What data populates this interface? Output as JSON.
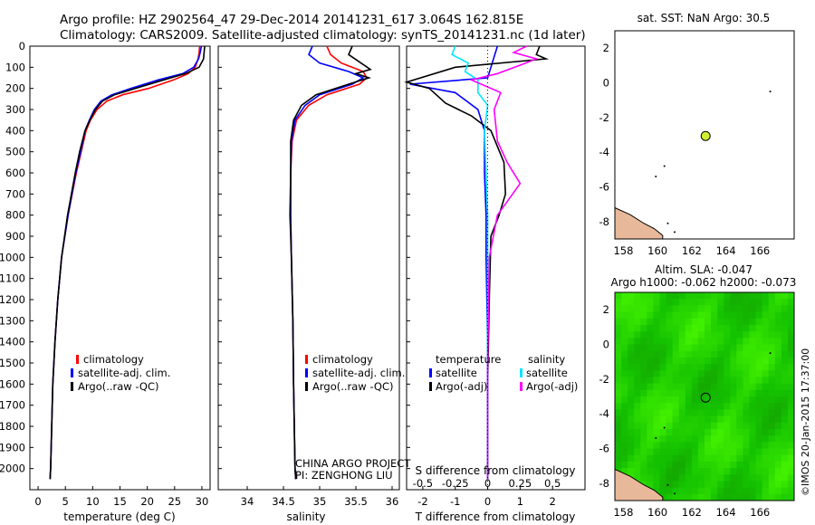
{
  "header": {
    "line1": "Argo profile: HZ 2902564_47 29-Dec-2014 20141231_617 3.064S 162.815E",
    "line2": "Climatology: CARS2009. Satellite-adjusted climatology: synTS_20141231.nc (1d later)"
  },
  "colors": {
    "climatology": "#ff0000",
    "satellite": "#0000ff",
    "argo": "#000000",
    "sat_T": "#00e5ff",
    "argo_S": "#ff00ff",
    "sst_marker": "#ccee33"
  },
  "project": {
    "line1": "CHINA ARGO PROJECT",
    "line2": "PI: ZENGHONG LIU"
  },
  "map_sst": {
    "title": "sat. SST: NaN Argo: 30.5",
    "float_lon": 162.815,
    "float_lat": -3.064
  },
  "map_sla": {
    "title1": "Altim. SLA: -0.047",
    "title2": "Argo h1000: -0.062 h2000: -0.073",
    "float_lon": 162.815,
    "float_lat": -3.064
  },
  "credit": "©IMOS 20-Jan-2015 17:37:00",
  "chart_data": [
    {
      "type": "line",
      "name": "temperature",
      "xlabel": "temperature (deg C)",
      "ylim": [
        2100,
        0
      ],
      "xlim": [
        -1.5,
        31.5
      ],
      "xticks": [
        0,
        5,
        10,
        15,
        20,
        25,
        30
      ],
      "yticks": [
        0,
        100,
        200,
        300,
        400,
        500,
        600,
        700,
        800,
        900,
        1000,
        1100,
        1200,
        1300,
        1400,
        1500,
        1600,
        1700,
        1800,
        1900,
        2000
      ],
      "legend": [
        "climatology",
        "satellite-adj. clim.",
        "Argo(..raw -QC)"
      ],
      "series": [
        {
          "name": "climatology",
          "color": "#ff0000",
          "x": [
            29.6,
            29.5,
            29.3,
            28.8,
            27.5,
            24.8,
            20.2,
            15.5,
            12.6,
            10.8,
            9.6,
            8.8,
            7.9,
            7.0,
            5.5,
            4.3,
            3.6,
            3.1,
            2.7,
            2.5,
            2.3,
            2.2
          ],
          "y": [
            0,
            30,
            60,
            100,
            130,
            160,
            200,
            230,
            260,
            300,
            350,
            400,
            500,
            600,
            800,
            1000,
            1200,
            1400,
            1600,
            1800,
            2000,
            2050
          ]
        },
        {
          "name": "satellite-adj. clim.",
          "color": "#0000ff",
          "x": [
            29.9,
            29.7,
            29.4,
            28.5,
            26.5,
            22.0,
            17.0,
            13.5,
            11.5,
            10.3,
            9.4,
            8.6,
            7.8,
            6.9,
            5.5,
            4.3,
            3.6,
            3.1,
            2.7,
            2.5,
            2.3,
            2.2
          ],
          "y": [
            0,
            30,
            60,
            100,
            130,
            160,
            200,
            230,
            260,
            300,
            350,
            400,
            500,
            600,
            800,
            1000,
            1200,
            1400,
            1600,
            1800,
            2000,
            2050
          ]
        },
        {
          "name": "Argo(..raw -QC)",
          "color": "#000000",
          "x": [
            30.5,
            30.4,
            30.3,
            29.5,
            27.0,
            23.0,
            17.8,
            14.0,
            11.8,
            10.5,
            9.5,
            8.6,
            7.6,
            6.8,
            5.4,
            4.3,
            3.6,
            3.1,
            2.7,
            2.5,
            2.3,
            2.2
          ],
          "y": [
            0,
            30,
            60,
            100,
            130,
            160,
            200,
            230,
            260,
            300,
            350,
            400,
            500,
            600,
            800,
            1000,
            1200,
            1400,
            1600,
            1800,
            2000,
            2050
          ]
        }
      ]
    },
    {
      "type": "line",
      "name": "salinity",
      "xlabel": "salinity",
      "ylim": [
        2100,
        0
      ],
      "xlim": [
        33.6,
        36.1
      ],
      "xticks": [
        34,
        34.5,
        35,
        35.5,
        36
      ],
      "legend": [
        "climatology",
        "satellite-adj. clim.",
        "Argo(..raw -QC)"
      ],
      "series": [
        {
          "name": "climatology",
          "color": "#ff0000",
          "x": [
            35.1,
            35.15,
            35.3,
            35.6,
            35.65,
            35.55,
            35.1,
            34.85,
            34.68,
            34.62,
            34.6,
            34.6,
            34.61,
            34.63,
            34.64,
            34.65,
            34.66,
            34.67
          ],
          "y": [
            0,
            40,
            80,
            120,
            150,
            180,
            230,
            280,
            350,
            450,
            600,
            800,
            1000,
            1300,
            1600,
            1800,
            2000,
            2050
          ]
        },
        {
          "name": "satellite-adj. clim.",
          "color": "#0000ff",
          "x": [
            34.9,
            34.85,
            35.0,
            35.4,
            35.6,
            35.45,
            35.0,
            34.8,
            34.66,
            34.61,
            34.6,
            34.6,
            34.61,
            34.63,
            34.64,
            34.65,
            34.66,
            34.67
          ],
          "y": [
            0,
            40,
            80,
            120,
            150,
            180,
            230,
            280,
            350,
            450,
            600,
            800,
            1000,
            1300,
            1600,
            1800,
            2000,
            2050
          ]
        },
        {
          "name": "Argo(..raw -QC)",
          "color": "#000000",
          "x": [
            35.45,
            35.4,
            35.7,
            35.5,
            35.68,
            35.4,
            34.95,
            34.75,
            34.64,
            34.6,
            34.6,
            34.59,
            34.61,
            34.63,
            34.64,
            34.65,
            34.66,
            34.67
          ],
          "y": [
            0,
            40,
            110,
            130,
            150,
            180,
            230,
            280,
            350,
            450,
            600,
            800,
            1000,
            1300,
            1600,
            1800,
            2000,
            2050
          ]
        }
      ]
    },
    {
      "type": "line",
      "name": "difference",
      "xlabel": "T difference from climatology",
      "xlabel_top": "S difference from climatology",
      "ylim": [
        2100,
        0
      ],
      "xlim": [
        -2.5,
        3.0
      ],
      "xticks": [
        -2,
        -1,
        0,
        1,
        2
      ],
      "xticks_s": [
        "-0.5",
        "-0.25",
        "0",
        "0.25",
        "0.5"
      ],
      "legend": [
        "temperature",
        "satellite",
        "Argo(-adj)",
        "salinity",
        "satellite",
        "Argo(-adj)"
      ],
      "series": [
        {
          "name": "T satellite",
          "color": "#0000ff",
          "x": [
            0.3,
            0.2,
            0.1,
            0.0,
            -2.4,
            -1.0,
            -0.3,
            -0.1,
            -0.1,
            -0.05,
            -0.05,
            0,
            0,
            0
          ],
          "y": [
            0,
            50,
            100,
            150,
            180,
            220,
            300,
            400,
            600,
            800,
            1000,
            1400,
            1800,
            2050
          ]
        },
        {
          "name": "T Argo(-adj)",
          "color": "#000000",
          "x": [
            1.6,
            1.5,
            1.8,
            -1.0,
            -2.5,
            -1.8,
            -1.3,
            -0.5,
            0.1,
            0.5,
            0.55,
            0.35,
            0.1,
            0.05,
            0,
            0
          ],
          "y": [
            0,
            40,
            60,
            100,
            170,
            200,
            270,
            330,
            400,
            550,
            700,
            800,
            900,
            1200,
            1600,
            2050
          ]
        },
        {
          "name": "S satellite",
          "color": "#00e5ff",
          "x": [
            -1.0,
            -1.1,
            -0.6,
            -0.7,
            -0.3,
            -0.3,
            0,
            -0.1,
            -0.05,
            0,
            0,
            0,
            0
          ],
          "y": [
            0,
            40,
            80,
            120,
            160,
            220,
            280,
            400,
            600,
            800,
            1000,
            1500,
            2050
          ]
        },
        {
          "name": "S Argo(-adj)",
          "color": "#ff00ff",
          "x": [
            1.2,
            0.8,
            1.5,
            1.0,
            0.3,
            -0.5,
            0.4,
            0.2,
            0.3,
            0.6,
            1.0,
            0.3,
            0.05,
            0,
            0
          ],
          "y": [
            0,
            30,
            60,
            90,
            130,
            160,
            220,
            300,
            450,
            550,
            650,
            800,
            1000,
            1500,
            2050
          ]
        }
      ]
    },
    {
      "type": "scatter",
      "name": "sst-map",
      "xlim": [
        157.5,
        168.0
      ],
      "ylim": [
        -9.0,
        3.0
      ],
      "xticks": [
        158,
        160,
        162,
        164,
        166
      ],
      "yticks": [
        2,
        0,
        -2,
        -4,
        -6,
        -8
      ],
      "series": [
        {
          "name": "Argo",
          "x": [
            162.815
          ],
          "y": [
            -3.064
          ]
        }
      ]
    },
    {
      "type": "heatmap",
      "name": "sla-map",
      "xlim": [
        157.5,
        168.0
      ],
      "ylim": [
        -9.0,
        3.0
      ],
      "xticks": [
        158,
        160,
        162,
        164,
        166
      ],
      "yticks": [
        2,
        0,
        -2,
        -4,
        -6,
        -8
      ],
      "series": [
        {
          "name": "Argo",
          "x": [
            162.815
          ],
          "y": [
            -3.064
          ]
        }
      ]
    }
  ]
}
